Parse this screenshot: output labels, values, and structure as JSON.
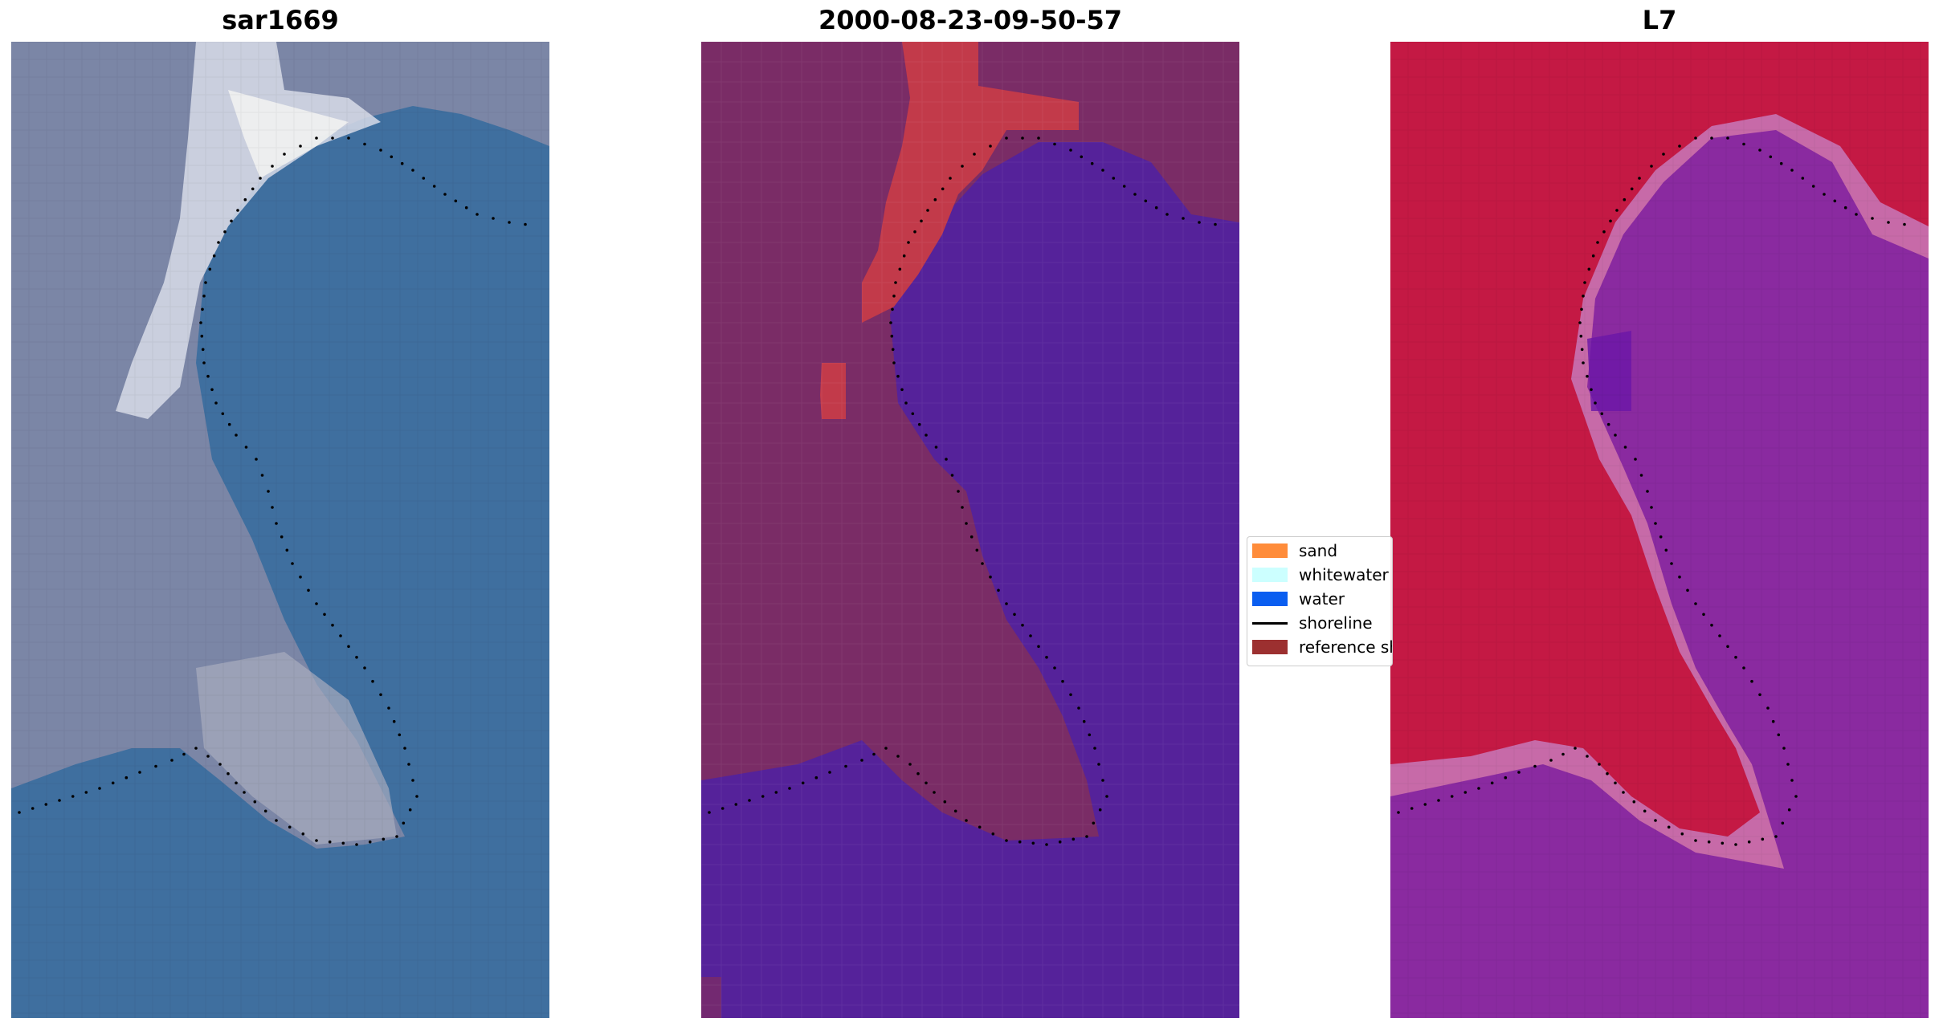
{
  "panels": [
    {
      "title": "sar1669"
    },
    {
      "title": "2000-08-23-09-50-57"
    },
    {
      "title": "L7"
    }
  ],
  "legend": {
    "items": [
      {
        "label": "sand",
        "color": "#ff8c3a"
      },
      {
        "label": "whitewater",
        "color": "#ccffff"
      },
      {
        "label": "water",
        "color": "#0a5ef0"
      },
      {
        "label": "shoreline",
        "color": "#000000"
      },
      {
        "label": "reference shoreline",
        "color": "#9c3030"
      }
    ]
  },
  "colors": {
    "rgb_water": "#3f6f9f",
    "rgb_land": "#7b86a6",
    "class_land": "#7a2c66",
    "class_water": "#55229a",
    "class_reference": "#c23a4a",
    "ndwi_land": "#c41944",
    "ndwi_water": "#8a2aa0",
    "ndwi_edge": "#c76aa8"
  }
}
